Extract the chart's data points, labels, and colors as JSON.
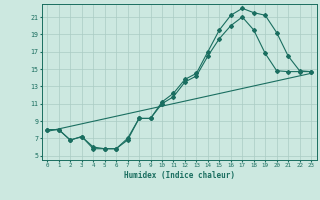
{
  "xlabel": "Humidex (Indice chaleur)",
  "bg_color": "#cce8e0",
  "grid_color": "#aaccc4",
  "line_color": "#1a6e60",
  "xlim": [
    -0.5,
    23.5
  ],
  "ylim": [
    4.5,
    22.5
  ],
  "xticks": [
    0,
    1,
    2,
    3,
    4,
    5,
    6,
    7,
    8,
    9,
    10,
    11,
    12,
    13,
    14,
    15,
    16,
    17,
    18,
    19,
    20,
    21,
    22,
    23
  ],
  "yticks": [
    5,
    7,
    9,
    11,
    13,
    15,
    17,
    19,
    21
  ],
  "line1_x": [
    0,
    1,
    2,
    3,
    4,
    5,
    6,
    7,
    8,
    9,
    10,
    11,
    12,
    13,
    14,
    15,
    16,
    17,
    18,
    19,
    20,
    21,
    22,
    23
  ],
  "line1_y": [
    8.0,
    8.0,
    6.8,
    7.2,
    6.0,
    5.8,
    5.8,
    6.8,
    9.3,
    9.3,
    11.2,
    12.2,
    13.8,
    14.5,
    17.0,
    19.5,
    21.2,
    22.0,
    21.5,
    21.2,
    19.2,
    16.5,
    14.8,
    14.7
  ],
  "line2_x": [
    0,
    1,
    2,
    3,
    4,
    5,
    6,
    7,
    8,
    9,
    10,
    11,
    12,
    13,
    14,
    15,
    16,
    17,
    18,
    19,
    20,
    21,
    22,
    23
  ],
  "line2_y": [
    8.0,
    8.0,
    6.8,
    7.2,
    5.8,
    5.8,
    5.8,
    7.0,
    9.3,
    9.3,
    11.0,
    11.8,
    13.5,
    14.2,
    16.5,
    18.5,
    20.0,
    21.0,
    19.5,
    16.8,
    14.8,
    14.7,
    14.7,
    14.7
  ],
  "line3_x": [
    0,
    23
  ],
  "line3_y": [
    7.8,
    14.5
  ]
}
